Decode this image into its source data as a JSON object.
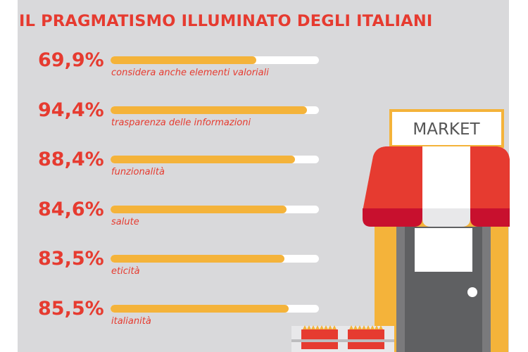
{
  "title": "IL PRAGMATISMO ILLUMINATO DEGLI ITALIANI",
  "market_sign": "MARKET",
  "colors": {
    "accent": "#e63b30",
    "bar_fill": "#f4b33a",
    "bar_track": "#ffffff",
    "panel": "#d9d9db"
  },
  "chart_data": {
    "type": "bar",
    "orientation": "horizontal",
    "title": "IL PRAGMATISMO ILLUMINATO DEGLI ITALIANI",
    "xlim": [
      0,
      100
    ],
    "grid": false,
    "categories": [
      "considera anche elementi valoriali",
      "trasparenza delle informazioni",
      "funzionalità",
      "salute",
      "eticità",
      "italianità"
    ],
    "values": [
      69.9,
      94.4,
      88.4,
      84.6,
      83.5,
      85.5
    ],
    "value_labels": [
      "69,9%",
      "94,4%",
      "88,4%",
      "84,6%",
      "83,5%",
      "85,5%"
    ]
  }
}
